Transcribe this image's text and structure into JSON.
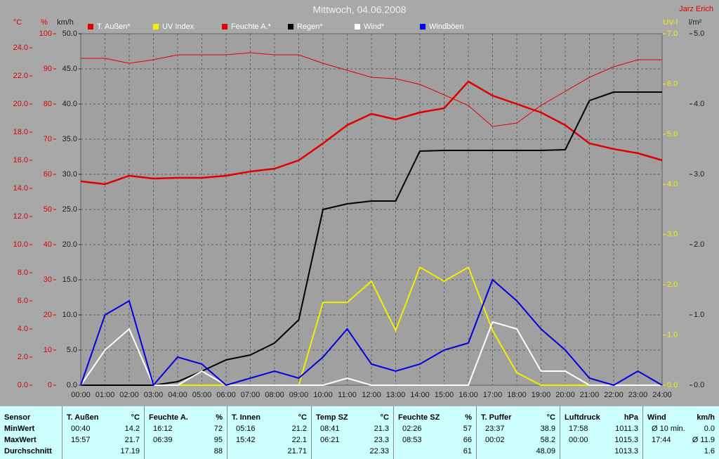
{
  "chart_data": {
    "type": "line",
    "title": "Mittwoch, 04.06.2008",
    "author": "Jarz Erich",
    "x": [
      0,
      1,
      2,
      3,
      4,
      5,
      6,
      7,
      8,
      9,
      10,
      11,
      12,
      13,
      14,
      15,
      16,
      17,
      18,
      19,
      20,
      21,
      22,
      23,
      24
    ],
    "xlim": [
      0,
      24
    ],
    "xticks": [
      {
        "value": 0,
        "label": "00:00"
      },
      {
        "value": 1,
        "label": "01:00"
      },
      {
        "value": 2,
        "label": "02:00"
      },
      {
        "value": 3,
        "label": "03:00"
      },
      {
        "value": 4,
        "label": "04:00"
      },
      {
        "value": 5,
        "label": "05:00"
      },
      {
        "value": 6,
        "label": "06:00"
      },
      {
        "value": 7,
        "label": "07:00"
      },
      {
        "value": 8,
        "label": "08:00"
      },
      {
        "value": 9,
        "label": "09:00"
      },
      {
        "value": 10,
        "label": "10:00"
      },
      {
        "value": 11,
        "label": "11:00"
      },
      {
        "value": 12,
        "label": "12:00"
      },
      {
        "value": 13,
        "label": "13:00"
      },
      {
        "value": 14,
        "label": "14:00"
      },
      {
        "value": 15,
        "label": "15:00"
      },
      {
        "value": 16,
        "label": "16:00"
      },
      {
        "value": 17,
        "label": "17:00"
      },
      {
        "value": 18,
        "label": "18:00"
      },
      {
        "value": 19,
        "label": "19:00"
      },
      {
        "value": 20,
        "label": "20:00"
      },
      {
        "value": 21,
        "label": "21:00"
      },
      {
        "value": 22,
        "label": "22:00"
      },
      {
        "value": 23,
        "label": "23:00"
      },
      {
        "value": 24,
        "label": "24:00"
      }
    ],
    "grid": true,
    "axes": [
      {
        "label": "°C",
        "color": "#e00000",
        "side": "left",
        "lim": [
          0,
          25
        ],
        "ticks": [
          {
            "value": 0,
            "label": "0.0"
          },
          {
            "value": 2,
            "label": "2.0"
          },
          {
            "value": 4,
            "label": "4.0"
          },
          {
            "value": 6,
            "label": "6.0"
          },
          {
            "value": 8,
            "label": "8.0"
          },
          {
            "value": 10,
            "label": "10.0"
          },
          {
            "value": 12,
            "label": "12.0"
          },
          {
            "value": 14,
            "label": "14.0"
          },
          {
            "value": 16,
            "label": "16.0"
          },
          {
            "value": 18,
            "label": "18.0"
          },
          {
            "value": 20,
            "label": "20.0"
          },
          {
            "value": 22,
            "label": "22.0"
          },
          {
            "value": 24,
            "label": "24.0"
          }
        ]
      },
      {
        "label": "%",
        "color": "#e00000",
        "side": "left",
        "lim": [
          0,
          100
        ],
        "ticks": [
          0,
          10,
          20,
          30,
          40,
          50,
          60,
          70,
          80,
          90,
          100
        ]
      },
      {
        "label": "km/h",
        "color": "#202020",
        "side": "left",
        "lim": [
          0,
          50
        ],
        "ticks": [
          {
            "value": 0,
            "label": "0.0"
          },
          {
            "value": 5,
            "label": "5.0"
          },
          {
            "value": 10,
            "label": "10.0"
          },
          {
            "value": 15,
            "label": "15.0"
          },
          {
            "value": 20,
            "label": "20.0"
          },
          {
            "value": 25,
            "label": "25.0"
          },
          {
            "value": 30,
            "label": "30.0"
          },
          {
            "value": 35,
            "label": "35.0"
          },
          {
            "value": 40,
            "label": "40.0"
          },
          {
            "value": 45,
            "label": "45.0"
          },
          {
            "value": 50,
            "label": "50.0"
          }
        ]
      },
      {
        "label": "UV-I",
        "color": "#f0f000",
        "side": "right",
        "lim": [
          0,
          7
        ],
        "ticks": [
          {
            "value": 0,
            "label": "0.0"
          },
          {
            "value": 1,
            "label": "1.0"
          },
          {
            "value": 2,
            "label": "2.0"
          },
          {
            "value": 3,
            "label": "3.0"
          },
          {
            "value": 4,
            "label": "4.0"
          },
          {
            "value": 5,
            "label": "5.0"
          },
          {
            "value": 6,
            "label": "6.0"
          },
          {
            "value": 7,
            "label": "7.0"
          }
        ]
      },
      {
        "label": "l/m²",
        "color": "#202020",
        "side": "right",
        "lim": [
          0,
          5
        ],
        "ticks": [
          {
            "value": 0,
            "label": "0.0"
          },
          {
            "value": 1,
            "label": "1.0"
          },
          {
            "value": 2,
            "label": "2.0"
          },
          {
            "value": 3,
            "label": "3.0"
          },
          {
            "value": 4,
            "label": "4.0"
          },
          {
            "value": 5,
            "label": "5.0"
          }
        ]
      }
    ],
    "series": [
      {
        "name": "T. Außen*",
        "color": "#e00000",
        "axis": 0,
        "width": 2.5,
        "values": [
          14.5,
          14.3,
          14.9,
          14.7,
          14.75,
          14.75,
          14.9,
          15.2,
          15.4,
          16.0,
          17.2,
          18.5,
          19.3,
          18.9,
          19.4,
          19.7,
          21.6,
          20.6,
          20.0,
          19.4,
          18.5,
          17.2,
          16.8,
          16.5,
          16.0
        ]
      },
      {
        "name": "UV Index",
        "color": "#f0f000",
        "axis": 3,
        "width": 2,
        "values": [
          0,
          0,
          0,
          0,
          0,
          0,
          0,
          0,
          0,
          0,
          1.65,
          1.65,
          2.07,
          1.09,
          2.35,
          2.07,
          2.35,
          1.09,
          0.25,
          0,
          0,
          0,
          0,
          0,
          0
        ]
      },
      {
        "name": "Feuchte A.*",
        "color": "#e00000",
        "axis": 1,
        "width": 1,
        "values": [
          93,
          93,
          91.6,
          92.6,
          94,
          94,
          94,
          94.6,
          94,
          94,
          91.6,
          89.6,
          87.6,
          87.2,
          85.6,
          82.6,
          79.6,
          73.6,
          74.6,
          79.6,
          83.6,
          87.6,
          90.6,
          92.6,
          92.6
        ]
      },
      {
        "name": "Regen*",
        "color": "#000000",
        "axis": 4,
        "width": 2,
        "values": [
          0,
          0,
          0,
          0,
          0.05,
          0.2,
          0.36,
          0.43,
          0.6,
          0.93,
          2.5,
          2.58,
          2.62,
          2.62,
          3.33,
          3.34,
          3.34,
          3.34,
          3.34,
          3.34,
          3.35,
          4.05,
          4.17,
          4.17,
          4.17
        ]
      },
      {
        "name": "Wind*",
        "color": "#ffffff",
        "axis": 2,
        "width": 2,
        "values": [
          0,
          5,
          8,
          0,
          0,
          2,
          0,
          0,
          0,
          0,
          0,
          1,
          0,
          0,
          0,
          0,
          0,
          9,
          8,
          2,
          2,
          0,
          0,
          0,
          0
        ]
      },
      {
        "name": "Windböen",
        "color": "#0000e0",
        "axis": 2,
        "width": 2,
        "values": [
          0,
          10,
          12,
          0,
          4,
          3,
          0,
          1,
          2,
          1,
          4,
          8,
          3,
          2,
          3,
          5,
          6,
          15,
          12,
          8,
          5,
          1,
          0,
          2,
          0
        ]
      }
    ]
  },
  "table": {
    "headers": [
      [
        "Sensor",
        ""
      ],
      [
        "T. Außen",
        "°C"
      ],
      [
        "Feuchte A.",
        "%"
      ],
      [
        "T. Innen",
        "°C"
      ],
      [
        "Temp SZ",
        "°C"
      ],
      [
        "Feuchte SZ",
        "%"
      ],
      [
        "T. Puffer",
        "°C"
      ],
      [
        "Luftdruck",
        "hPa"
      ],
      [
        "Wind",
        "km/h"
      ]
    ],
    "rows": [
      {
        "label": "MinWert",
        "cells": [
          [
            "00:40",
            "14.2"
          ],
          [
            "16:12",
            "72"
          ],
          [
            "05:16",
            "21.2"
          ],
          [
            "08:41",
            "21.3"
          ],
          [
            "02:26",
            "57"
          ],
          [
            "23:37",
            "38.9"
          ],
          [
            "17:58",
            "1011.3"
          ],
          [
            "Ø 10 min.",
            "0.0"
          ]
        ]
      },
      {
        "label": "MaxWert",
        "cells": [
          [
            "15:57",
            "21.7"
          ],
          [
            "06:39",
            "95"
          ],
          [
            "15:42",
            "22.1"
          ],
          [
            "06:21",
            "23.3"
          ],
          [
            "08:53",
            "66"
          ],
          [
            "00:02",
            "58.2"
          ],
          [
            "00:00",
            "1015.3"
          ],
          [
            "17:44",
            "Ø 11.9"
          ]
        ]
      },
      {
        "label": "Durchschnitt",
        "cells": [
          [
            "",
            "17.19"
          ],
          [
            "",
            "88"
          ],
          [
            "",
            "21.71"
          ],
          [
            "",
            "22.33"
          ],
          [
            "",
            "61"
          ],
          [
            "",
            "48.09"
          ],
          [
            "",
            "1013.3"
          ],
          [
            "",
            "1.6"
          ]
        ]
      }
    ]
  }
}
